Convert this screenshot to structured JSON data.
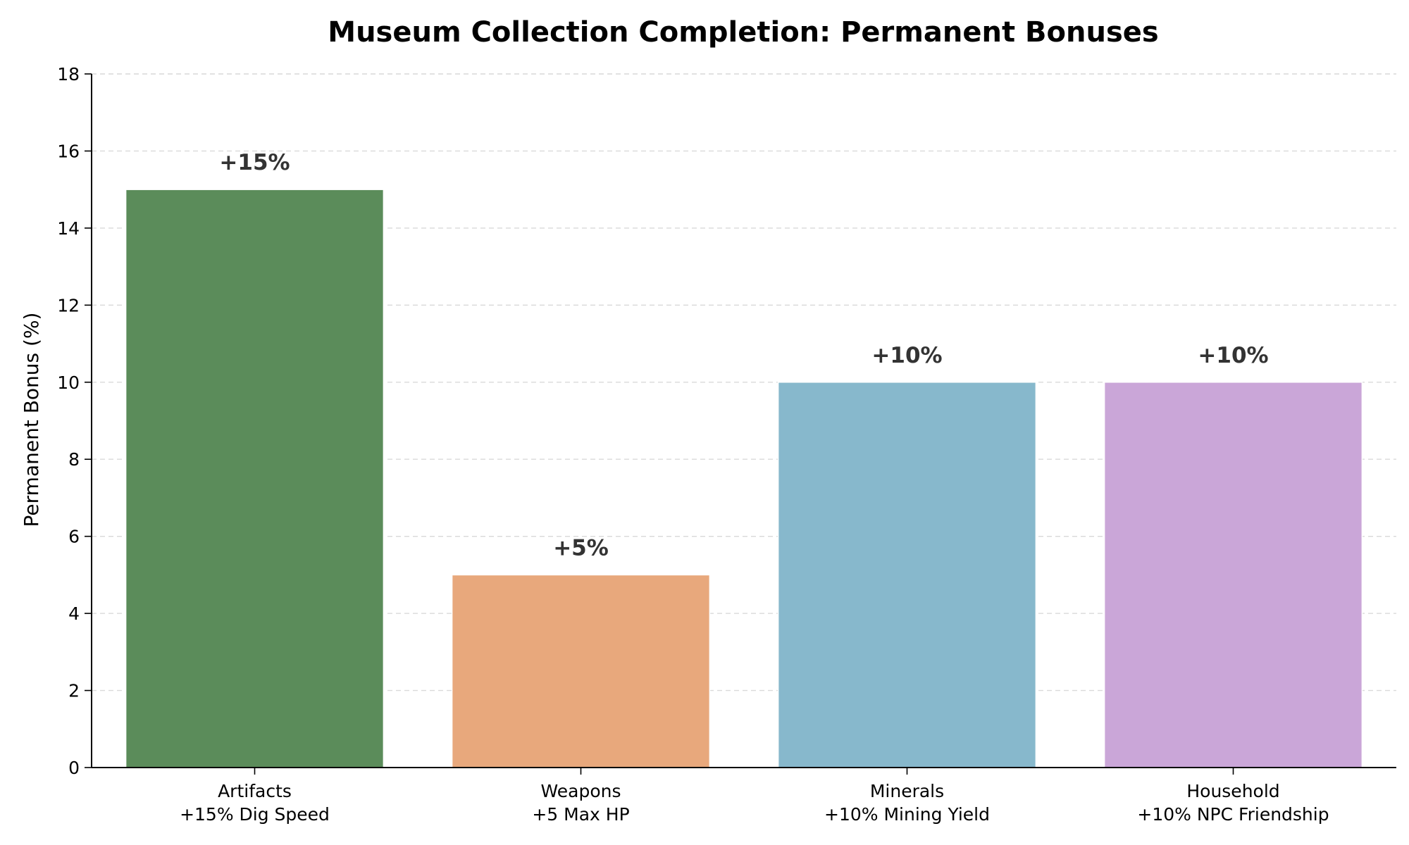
{
  "chart_data": {
    "type": "bar",
    "title": "Museum Collection Completion: Permanent Bonuses",
    "xlabel": "",
    "ylabel": "Permanent Bonus (%)",
    "categories": [
      [
        "Artifacts",
        "+15% Dig Speed"
      ],
      [
        "Weapons",
        "+5 Max HP"
      ],
      [
        "Minerals",
        "+10% Mining Yield"
      ],
      [
        "Household",
        "+10% NPC Friendship"
      ]
    ],
    "values": [
      15,
      5,
      10,
      10
    ],
    "data_labels": [
      "+15%",
      "+5%",
      "+10%",
      "+10%"
    ],
    "colors": [
      "#5b8c5a",
      "#e8a87c",
      "#87b8cc",
      "#caa6d8"
    ],
    "ylim": [
      0,
      18
    ],
    "yticks": [
      0,
      2,
      4,
      6,
      8,
      10,
      12,
      14,
      16,
      18
    ],
    "grid": "y-dashed",
    "legend": "none"
  }
}
